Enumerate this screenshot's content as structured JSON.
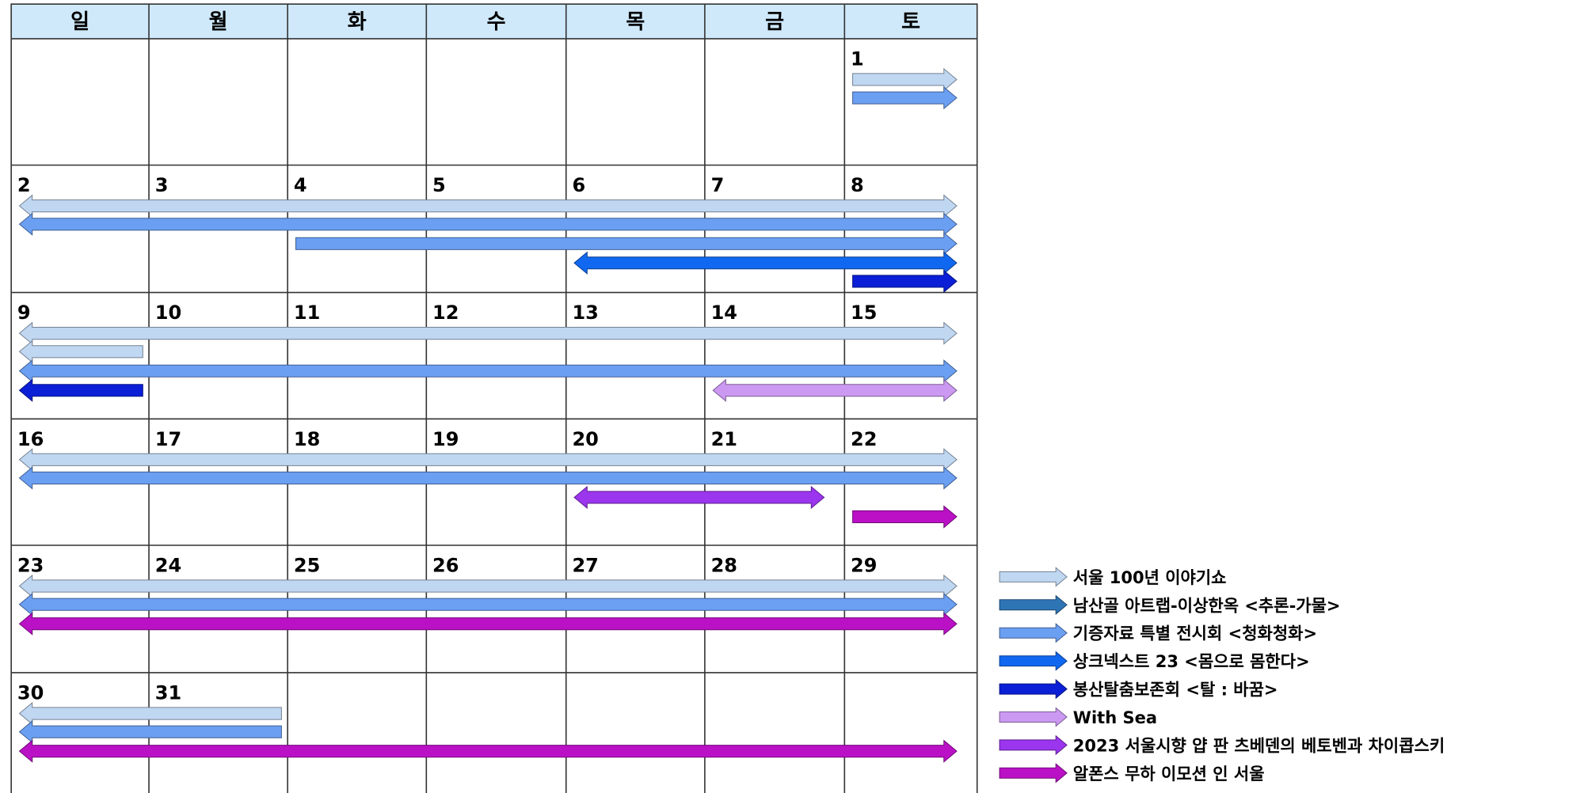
{
  "weekdays": [
    "일",
    "월",
    "화",
    "수",
    "목",
    "금",
    "토"
  ],
  "weeks": [
    [
      null,
      null,
      null,
      null,
      null,
      null,
      1
    ],
    [
      2,
      3,
      4,
      5,
      6,
      7,
      8
    ],
    [
      9,
      10,
      11,
      12,
      13,
      14,
      15
    ],
    [
      16,
      17,
      18,
      19,
      20,
      21,
      22
    ],
    [
      23,
      24,
      25,
      26,
      27,
      28,
      29
    ],
    [
      30,
      31,
      null,
      null,
      null,
      null,
      null
    ]
  ],
  "events": [
    {
      "label": "서울 100년 이야기쇼",
      "color": "#c0d7f2"
    },
    {
      "label": "남산골 아트랩-이상한옥 <추론-가물>",
      "color": "#2e75b6"
    },
    {
      "label": "기증자료 특별 전시회 <청화청화>",
      "color": "#6b9ff2"
    },
    {
      "label": "상크넥스트 23 <몸으로 몸한다>",
      "color": "#1168f0"
    },
    {
      "label": "봉산탈춤보존회 <탈 : 바꿈>",
      "color": "#0a1fd6"
    },
    {
      "label": "With Sea",
      "color": "#cc99f2"
    },
    {
      "label": "2023 서울시향 얍 판 츠베덴의 베토벤과 차이콥스키",
      "color": "#9b35ee"
    },
    {
      "label": "알폰스 무하 이모션 인 서울",
      "color": "#bb11c6"
    }
  ],
  "bars": [
    {
      "event": 0,
      "week": 0,
      "from": 6,
      "to": 6,
      "lane": 0,
      "start_arrow": false,
      "end_arrow": true
    },
    {
      "event": 2,
      "week": 0,
      "from": 6,
      "to": 6,
      "lane": 1,
      "start_arrow": false,
      "end_arrow": true
    },
    {
      "event": 0,
      "week": 1,
      "from": 0,
      "to": 6,
      "lane": 0,
      "start_arrow": true,
      "end_arrow": true
    },
    {
      "event": 2,
      "week": 1,
      "from": 0,
      "to": 6,
      "lane": 1,
      "start_arrow": true,
      "end_arrow": true
    },
    {
      "event": 2,
      "week": 1,
      "from": 2,
      "to": 6,
      "lane": 2,
      "start_arrow": false,
      "end_arrow": true
    },
    {
      "event": 3,
      "week": 1,
      "from": 4,
      "to": 6,
      "lane": 3,
      "start_arrow": true,
      "end_arrow": true
    },
    {
      "event": 4,
      "week": 1,
      "from": 6,
      "to": 6,
      "lane": 4,
      "start_arrow": false,
      "end_arrow": true
    },
    {
      "event": 0,
      "week": 2,
      "from": 0,
      "to": 6,
      "lane": 0,
      "start_arrow": true,
      "end_arrow": true
    },
    {
      "event": 0,
      "week": 2,
      "from": 0,
      "to": 0,
      "lane": 1,
      "start_arrow": true,
      "end_arrow": false
    },
    {
      "event": 2,
      "week": 2,
      "from": 0,
      "to": 6,
      "lane": 2,
      "start_arrow": true,
      "end_arrow": true
    },
    {
      "event": 4,
      "week": 2,
      "from": 0,
      "to": 0,
      "lane": 3,
      "start_arrow": true,
      "end_arrow": false
    },
    {
      "event": 5,
      "week": 2,
      "from": 5,
      "to": 6,
      "lane": 3,
      "start_arrow": true,
      "end_arrow": true
    },
    {
      "event": 0,
      "week": 3,
      "from": 0,
      "to": 6,
      "lane": 0,
      "start_arrow": true,
      "end_arrow": true
    },
    {
      "event": 2,
      "week": 3,
      "from": 0,
      "to": 6,
      "lane": 1,
      "start_arrow": true,
      "end_arrow": true
    },
    {
      "event": 6,
      "week": 3,
      "from": 4,
      "to": 5,
      "lane": 2,
      "start_arrow": true,
      "end_arrow": true
    },
    {
      "event": 7,
      "week": 3,
      "from": 6,
      "to": 6,
      "lane": 3,
      "start_arrow": false,
      "end_arrow": true
    },
    {
      "event": 0,
      "week": 4,
      "from": 0,
      "to": 6,
      "lane": 0,
      "start_arrow": true,
      "end_arrow": true
    },
    {
      "event": 2,
      "week": 4,
      "from": 0,
      "to": 6,
      "lane": 1,
      "start_arrow": true,
      "end_arrow": true
    },
    {
      "event": 7,
      "week": 4,
      "from": 0,
      "to": 6,
      "lane": 2,
      "start_arrow": true,
      "end_arrow": true
    },
    {
      "event": 0,
      "week": 5,
      "from": 0,
      "to": 1,
      "lane": 0,
      "start_arrow": true,
      "end_arrow": false
    },
    {
      "event": 2,
      "week": 5,
      "from": 0,
      "to": 1,
      "lane": 1,
      "start_arrow": true,
      "end_arrow": false
    },
    {
      "event": 7,
      "week": 5,
      "from": 0,
      "to": 6,
      "lane": 2,
      "start_arrow": true,
      "end_arrow": true
    }
  ]
}
